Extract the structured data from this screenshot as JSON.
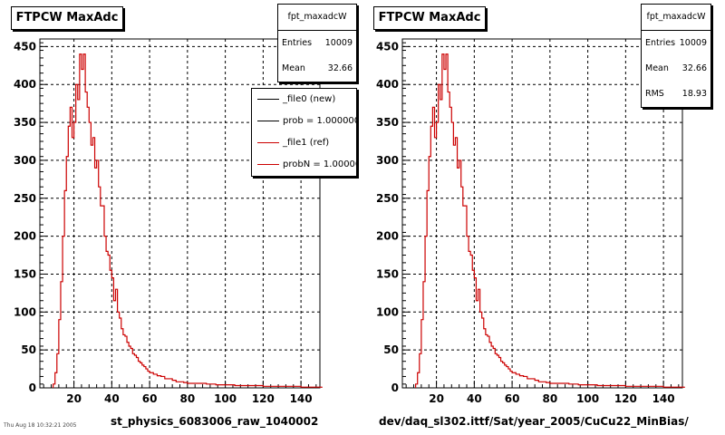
{
  "panels": [
    {
      "title": "FTPCW MaxAdc",
      "stats": {
        "name": "fpt_maxadcW",
        "rows": [
          {
            "k": "Entries",
            "v": "10009"
          },
          {
            "k": "Mean",
            "v": "32.66"
          }
        ]
      },
      "legend": [
        {
          "label": "_file0 (new)",
          "color": "#000000"
        },
        {
          "label": "prob = 1.000000",
          "color": "#000000"
        },
        {
          "label": "_file1 (ref)",
          "color": "#cc0000"
        },
        {
          "label": "probN = 1.000000",
          "color": "#cc0000"
        }
      ],
      "footer": "st_physics_6083006_raw_1040002"
    },
    {
      "title": "FTPCW MaxAdc",
      "stats": {
        "name": "fpt_maxadcW",
        "rows": [
          {
            "k": "Entries",
            "v": "10009"
          },
          {
            "k": "Mean",
            "v": "32.66"
          },
          {
            "k": "RMS",
            "v": "18.93"
          }
        ]
      },
      "footer": "dev/daq_sl302.ittf/Sat/year_2005/CuCu22_MinBias/"
    }
  ],
  "corner_text": "Thu Aug 18 10:32:21 2005",
  "colors": {
    "hist": "#cc0000",
    "grid": "#000000"
  },
  "chart_data": [
    {
      "type": "histogram",
      "title": "FTPCW MaxAdc",
      "xlim": [
        2,
        150
      ],
      "ylim": [
        0,
        460
      ],
      "xticks": [
        20,
        40,
        60,
        80,
        100,
        120,
        140
      ],
      "yticks": [
        0,
        50,
        100,
        150,
        200,
        250,
        300,
        350,
        400,
        450
      ],
      "grid": true,
      "bin_width": 1,
      "x": [
        9,
        10,
        11,
        12,
        13,
        14,
        15,
        16,
        17,
        18,
        19,
        20,
        21,
        22,
        23,
        24,
        25,
        26,
        27,
        28,
        29,
        30,
        31,
        32,
        33,
        34,
        35,
        36,
        37,
        38,
        39,
        40,
        41,
        42,
        43,
        44,
        45,
        46,
        47,
        48,
        49,
        50,
        51,
        52,
        53,
        54,
        55,
        56,
        57,
        58,
        59,
        60,
        62,
        64,
        66,
        68,
        70,
        72,
        74,
        76,
        78,
        80,
        85,
        90,
        95,
        100,
        105,
        110,
        115,
        120,
        125,
        130,
        135,
        140,
        145,
        150
      ],
      "values": [
        5,
        20,
        45,
        90,
        140,
        200,
        260,
        305,
        345,
        370,
        330,
        350,
        400,
        380,
        440,
        420,
        440,
        390,
        370,
        350,
        320,
        330,
        290,
        300,
        265,
        240,
        240,
        200,
        180,
        175,
        155,
        145,
        115,
        130,
        100,
        92,
        78,
        70,
        68,
        60,
        55,
        52,
        45,
        43,
        40,
        35,
        33,
        30,
        28,
        25,
        22,
        20,
        18,
        16,
        15,
        12,
        12,
        10,
        8,
        8,
        7,
        6,
        6,
        5,
        4,
        4,
        3,
        3,
        3,
        2,
        2,
        2,
        2,
        1,
        1,
        1
      ],
      "series": [
        {
          "name": "_file0 (new)"
        },
        {
          "name": "_file1 (ref)"
        }
      ]
    },
    {
      "type": "histogram",
      "title": "FTPCW MaxAdc",
      "xlim": [
        2,
        150
      ],
      "ylim": [
        0,
        460
      ],
      "xticks": [
        20,
        40,
        60,
        80,
        100,
        120,
        140
      ],
      "yticks": [
        0,
        50,
        100,
        150,
        200,
        250,
        300,
        350,
        400,
        450
      ],
      "grid": true,
      "bin_width": 1,
      "x": [
        9,
        10,
        11,
        12,
        13,
        14,
        15,
        16,
        17,
        18,
        19,
        20,
        21,
        22,
        23,
        24,
        25,
        26,
        27,
        28,
        29,
        30,
        31,
        32,
        33,
        34,
        35,
        36,
        37,
        38,
        39,
        40,
        41,
        42,
        43,
        44,
        45,
        46,
        47,
        48,
        49,
        50,
        51,
        52,
        53,
        54,
        55,
        56,
        57,
        58,
        59,
        60,
        62,
        64,
        66,
        68,
        70,
        72,
        74,
        76,
        78,
        80,
        85,
        90,
        95,
        100,
        105,
        110,
        115,
        120,
        125,
        130,
        135,
        140,
        145,
        150
      ],
      "values": [
        5,
        20,
        45,
        90,
        140,
        200,
        260,
        305,
        345,
        370,
        330,
        350,
        400,
        380,
        440,
        420,
        440,
        390,
        370,
        350,
        320,
        330,
        290,
        300,
        265,
        240,
        240,
        200,
        180,
        175,
        155,
        145,
        115,
        130,
        100,
        92,
        78,
        70,
        68,
        60,
        55,
        52,
        45,
        43,
        40,
        35,
        33,
        30,
        28,
        25,
        22,
        20,
        18,
        16,
        15,
        12,
        12,
        10,
        8,
        8,
        7,
        6,
        6,
        5,
        4,
        4,
        3,
        3,
        3,
        2,
        2,
        2,
        2,
        1,
        1,
        1
      ]
    }
  ]
}
